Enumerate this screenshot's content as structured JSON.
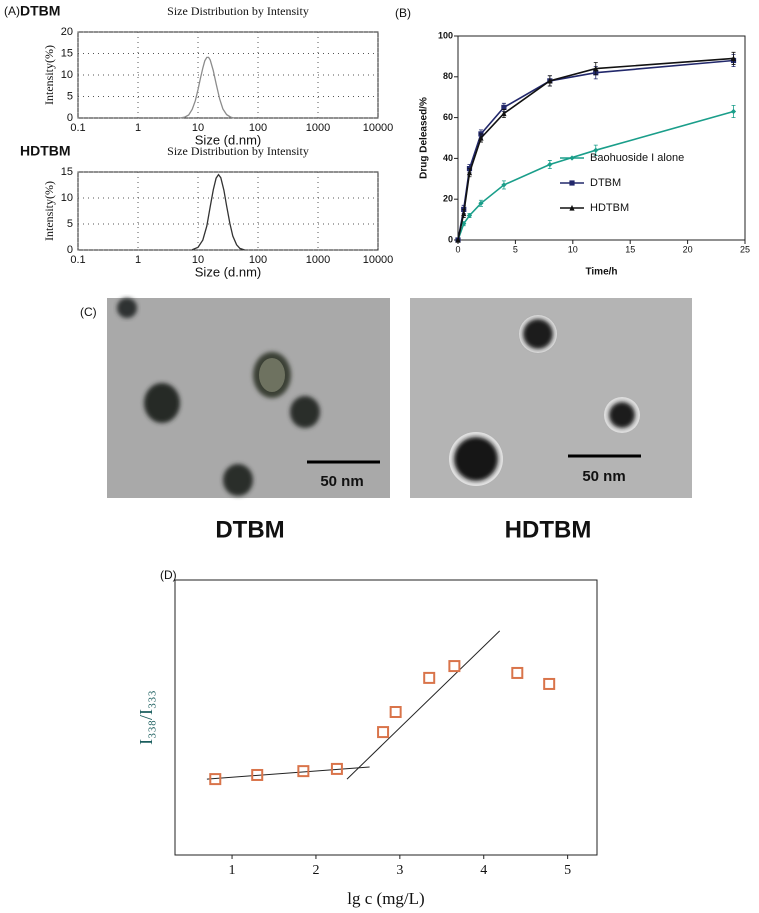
{
  "chart_data": [
    {
      "type": "line",
      "panel_label": "(A)",
      "label": "DTBM",
      "title": "Size Distribution by Intensity",
      "xlabel": "Size (d.nm)",
      "ylabel": "Intensity(%)",
      "xscale": "log",
      "x": [
        5,
        6,
        7,
        8,
        9,
        10,
        11,
        12,
        13,
        14,
        15,
        16,
        18,
        20,
        23,
        26,
        30,
        35,
        40
      ],
      "values": [
        0,
        0.2,
        0.7,
        2.0,
        4.0,
        6.6,
        9.3,
        11.6,
        13.3,
        14.1,
        14.1,
        13.5,
        11.0,
        8.0,
        4.4,
        2.1,
        0.8,
        0.2,
        0
      ],
      "color": "#8c8c8c",
      "xlim": [
        0.1,
        10000
      ],
      "xticks": [
        0.1,
        1,
        10,
        100,
        1000,
        10000
      ],
      "ylim": [
        0,
        20
      ],
      "yticks": [
        0,
        5,
        10,
        15,
        20
      ],
      "grid": true
    },
    {
      "type": "line",
      "label": "HDTBM",
      "title": "Size Distribution by Intensity",
      "xlabel": "Size (d.nm)",
      "ylabel": "Intensity(%)",
      "xscale": "log",
      "x": [
        8,
        10,
        12,
        14,
        16,
        18,
        20,
        22,
        24,
        27,
        30,
        34,
        38,
        44,
        50,
        60
      ],
      "values": [
        0.05,
        0.5,
        1.9,
        4.6,
        8.3,
        11.6,
        13.8,
        14.5,
        13.9,
        11.5,
        8.5,
        5.1,
        2.7,
        1.0,
        0.3,
        0
      ],
      "color": "#333333",
      "xlim": [
        0.1,
        10000
      ],
      "xticks": [
        0.1,
        1,
        10,
        100,
        1000,
        10000
      ],
      "ylim": [
        0,
        15
      ],
      "yticks": [
        0,
        5,
        10,
        15
      ],
      "grid": true
    },
    {
      "type": "errorline",
      "panel_label": "(B)",
      "xlabel": "Time/h",
      "ylabel": "Drug Deleased/%",
      "x": [
        0,
        0.5,
        1,
        2,
        4,
        8,
        12,
        24
      ],
      "series": [
        {
          "name": "Baohuoside I alone",
          "color": "#1a9e8a",
          "marker": "diamond",
          "values": [
            0,
            8,
            12,
            18,
            27,
            37,
            44,
            63
          ],
          "errors": [
            0,
            1,
            1,
            1.5,
            2,
            2,
            2.5,
            3
          ]
        },
        {
          "name": "DTBM",
          "color": "#22286b",
          "marker": "square",
          "values": [
            0,
            15,
            35,
            52,
            65,
            78,
            82,
            88
          ],
          "errors": [
            0,
            2,
            2,
            2,
            2,
            2.5,
            3,
            3
          ]
        },
        {
          "name": "HDTBM",
          "color": "#111111",
          "marker": "triangle",
          "values": [
            0,
            13,
            33,
            50,
            62,
            78,
            84,
            89
          ],
          "errors": [
            0,
            2,
            2,
            2,
            2,
            2.5,
            3,
            3
          ]
        }
      ],
      "xlim": [
        0,
        25
      ],
      "xticks": [
        0,
        5,
        10,
        15,
        20,
        25
      ],
      "ylim": [
        0,
        100
      ],
      "yticks": [
        0,
        20,
        40,
        60,
        80,
        100
      ],
      "grid": false,
      "legend": "right"
    },
    {
      "type": "scatter",
      "panel_label": "(D)",
      "xlabel": "lg c (mg/L)",
      "ylabel": "I₃₃₈/I₃₃₃",
      "x": [
        0.8,
        1.3,
        1.85,
        2.25,
        2.8,
        2.95,
        3.35,
        3.65,
        4.4,
        4.78
      ],
      "values": [
        27.6,
        29.1,
        30.5,
        31.3,
        44.7,
        52,
        64.4,
        68.7,
        66.2,
        62.2
      ],
      "fit_lines": [
        {
          "x": [
            0.7,
            2.64
          ],
          "values": [
            27.6,
            32
          ]
        },
        {
          "x": [
            2.37,
            4.19
          ],
          "values": [
            27.6,
            81.5
          ]
        }
      ],
      "color": "#d9744a",
      "xlim": [
        0.32,
        5.35
      ],
      "xticks": [
        1,
        2,
        3,
        4,
        5
      ],
      "ylim": [
        0,
        100
      ],
      "grid": false
    }
  ],
  "images": {
    "panel_label": "(C)",
    "left_caption": "DTBM",
    "right_caption": "HDTBM",
    "left_scale": "50 nm",
    "right_scale": "50 nm"
  }
}
